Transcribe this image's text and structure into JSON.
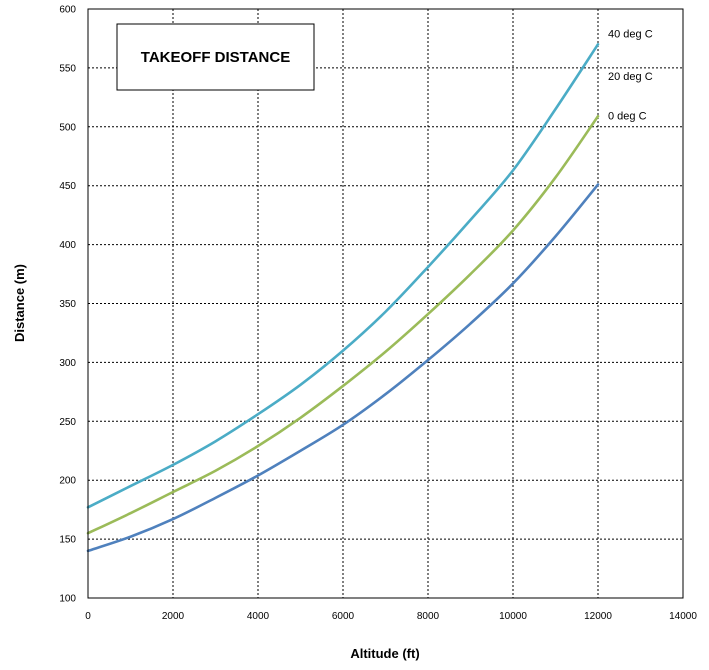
{
  "chart_data": {
    "type": "line",
    "title": "TAKEOFF DISTANCE",
    "xlabel": "Altitude (ft)",
    "ylabel": "Distance (m)",
    "xlim": [
      0,
      14000
    ],
    "ylim": [
      100,
      600
    ],
    "xticks": [
      0,
      2000,
      4000,
      6000,
      8000,
      10000,
      12000,
      14000
    ],
    "yticks": [
      100,
      150,
      200,
      250,
      300,
      350,
      400,
      450,
      500,
      550,
      600
    ],
    "grid": true,
    "x": [
      0,
      1000,
      2000,
      3000,
      4000,
      5000,
      6000,
      7000,
      8000,
      9000,
      10000,
      11000,
      12000
    ],
    "series": [
      {
        "name": "40 deg C",
        "color": "#4bacc6",
        "values": [
          177,
          195,
          213,
          233,
          256,
          281,
          310,
          343,
          381,
          421,
          463,
          515,
          570
        ]
      },
      {
        "name": "20 deg C",
        "color": "#9bbb59",
        "values": [
          155,
          172,
          190,
          208,
          229,
          253,
          280,
          309,
          341,
          375,
          412,
          457,
          509
        ]
      },
      {
        "name": "0 deg C",
        "color": "#4f81bd",
        "values": [
          140,
          152,
          167,
          185,
          204,
          225,
          247,
          273,
          302,
          333,
          367,
          407,
          451
        ]
      }
    ]
  }
}
